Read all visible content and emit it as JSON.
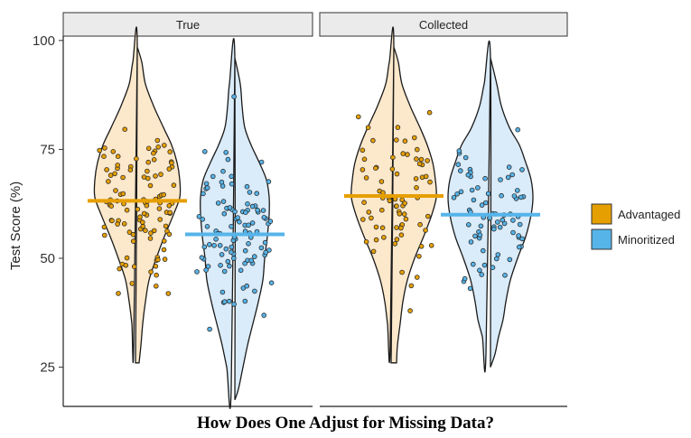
{
  "chart_data": {
    "type": "violin",
    "ylabel": "Test Score (%)",
    "yticks": [
      25,
      50,
      75,
      100
    ],
    "ylim": [
      16,
      101
    ],
    "facets": [
      "True",
      "Collected"
    ],
    "legend": {
      "position": "right",
      "entries": [
        {
          "name": "Advantaged",
          "color": "#E69F00",
          "fill": "#FBE4C2"
        },
        {
          "name": "Minoritized",
          "color": "#56B4E9",
          "fill": "#D3E8F8"
        }
      ]
    },
    "groups": [
      {
        "facet": "True",
        "group": "Advantaged",
        "mean": 63.2,
        "min": 26.0,
        "max": 98.5
      },
      {
        "facet": "True",
        "group": "Minoritized",
        "mean": 55.5,
        "min": 17.5,
        "max": 96.0
      },
      {
        "facet": "Collected",
        "group": "Advantaged",
        "mean": 64.3,
        "min": 26.0,
        "max": 98.5
      },
      {
        "facet": "Collected",
        "group": "Minoritized",
        "mean": 60.0,
        "min": 25.0,
        "max": 96.0
      }
    ]
  },
  "caption": "How Does One Adjust for Missing Data?"
}
